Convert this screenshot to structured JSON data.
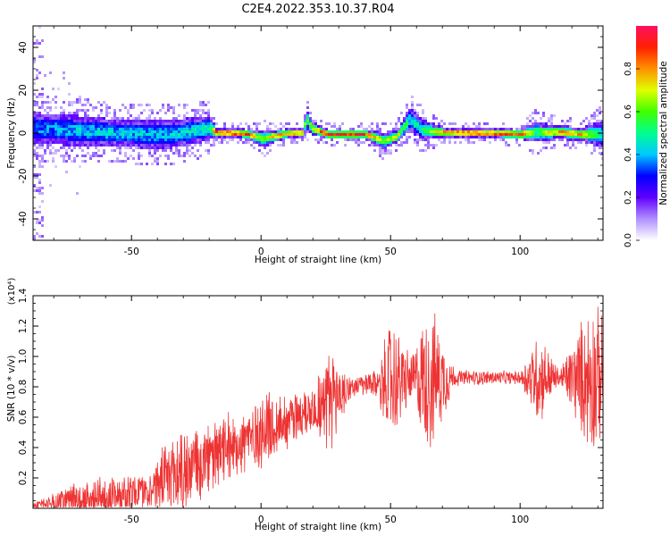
{
  "figure": {
    "title": "C2E4.2022.353.10.37.R04"
  },
  "chart_data": [
    {
      "type": "heatmap",
      "xlabel": "Height of straight line (km)",
      "ylabel": "Frequency (Hz)",
      "xlim": [
        -88,
        132
      ],
      "ylim": [
        -50,
        50
      ],
      "xticks": [
        -50,
        0,
        50,
        100
      ],
      "yticks": [
        -40,
        -20,
        0,
        20,
        40
      ],
      "colorbar": {
        "label": "Normalized spectral amplitude",
        "range": [
          0,
          1
        ],
        "ticks": [
          "0.0",
          "0.2",
          "0.4",
          "0.6",
          "0.8"
        ],
        "tick_values": [
          0.0,
          0.2,
          0.4,
          0.6,
          0.8
        ],
        "colormap": [
          "#ffffff",
          "#b090ff",
          "#6000ff",
          "#0000ff",
          "#00c8ff",
          "#00ff90",
          "#40ff00",
          "#e0ff00",
          "#ff9000",
          "#ff2000",
          "#ff1060"
        ]
      },
      "ridge": [
        {
          "x": -88,
          "freq": 3,
          "band": 4.5,
          "peak": 0.35
        },
        {
          "x": -75,
          "freq": 2,
          "band": 4.5,
          "peak": 0.4
        },
        {
          "x": -60,
          "freq": 1,
          "band": 4,
          "peak": 0.42
        },
        {
          "x": -45,
          "freq": 0,
          "band": 4,
          "peak": 0.4
        },
        {
          "x": -35,
          "freq": 0,
          "band": 4,
          "peak": 0.42
        },
        {
          "x": -25,
          "freq": 2,
          "band": 4,
          "peak": 0.45
        },
        {
          "x": -20,
          "freq": 3,
          "band": 3.5,
          "peak": 0.5
        },
        {
          "x": -18,
          "freq": 1,
          "band": 1.5,
          "peak": 0.9
        },
        {
          "x": -5,
          "freq": 0,
          "band": 1.5,
          "peak": 0.85
        },
        {
          "x": 0,
          "freq": -2,
          "band": 2.5,
          "peak": 0.6
        },
        {
          "x": 8,
          "freq": 0,
          "band": 1.5,
          "peak": 0.85
        },
        {
          "x": 16,
          "freq": 1,
          "band": 1.5,
          "peak": 0.8
        },
        {
          "x": 17,
          "freq": 8,
          "band": 3,
          "peak": 0.5
        },
        {
          "x": 19,
          "freq": 3,
          "band": 2,
          "peak": 0.7
        },
        {
          "x": 25,
          "freq": 0,
          "band": 1.5,
          "peak": 0.9
        },
        {
          "x": 40,
          "freq": 0,
          "band": 1.5,
          "peak": 0.88
        },
        {
          "x": 47,
          "freq": -3,
          "band": 2.5,
          "peak": 0.6
        },
        {
          "x": 52,
          "freq": -1,
          "band": 2,
          "peak": 0.7
        },
        {
          "x": 57,
          "freq": 7,
          "band": 3.5,
          "peak": 0.45
        },
        {
          "x": 62,
          "freq": 2,
          "band": 3,
          "peak": 0.5
        },
        {
          "x": 70,
          "freq": 1,
          "band": 1.5,
          "peak": 0.85
        },
        {
          "x": 100,
          "freq": 0,
          "band": 1.5,
          "peak": 0.88
        },
        {
          "x": 105,
          "freq": 1,
          "band": 3,
          "peak": 0.55
        },
        {
          "x": 115,
          "freq": 1,
          "band": 2,
          "peak": 0.8
        },
        {
          "x": 123,
          "freq": 0,
          "band": 2,
          "peak": 0.75
        },
        {
          "x": 132,
          "freq": 0,
          "band": 4,
          "peak": 0.45
        }
      ]
    },
    {
      "type": "line",
      "xlabel": "Height of straight line (km)",
      "ylabel": "SNR (10 * v/v)",
      "yunit": "(x10⁴)",
      "xlim": [
        -88,
        132
      ],
      "ylim": [
        0,
        1.4
      ],
      "xticks": [
        -50,
        0,
        50,
        100
      ],
      "yticks": [
        0.2,
        0.4,
        0.6,
        0.8,
        1.0,
        1.2,
        1.4
      ],
      "ytick_labels": [
        "0.2",
        "0.4",
        "0.6",
        "0.8",
        "1.0",
        "1.2",
        "1.4"
      ],
      "color": "#ee3333",
      "envelope": [
        {
          "x": -88,
          "base": 0.02,
          "amp": 0.02
        },
        {
          "x": -70,
          "base": 0.05,
          "amp": 0.12
        },
        {
          "x": -55,
          "base": 0.1,
          "amp": 0.14
        },
        {
          "x": -45,
          "base": 0.12,
          "amp": 0.12
        },
        {
          "x": -30,
          "base": 0.25,
          "amp": 0.3
        },
        {
          "x": -20,
          "base": 0.32,
          "amp": 0.22
        },
        {
          "x": -10,
          "base": 0.42,
          "amp": 0.2
        },
        {
          "x": 0,
          "base": 0.5,
          "amp": 0.25
        },
        {
          "x": 10,
          "base": 0.58,
          "amp": 0.18
        },
        {
          "x": 20,
          "base": 0.66,
          "amp": 0.15
        },
        {
          "x": 27,
          "base": 0.72,
          "amp": 0.35
        },
        {
          "x": 35,
          "base": 0.8,
          "amp": 0.05
        },
        {
          "x": 45,
          "base": 0.82,
          "amp": 0.1
        },
        {
          "x": 50,
          "base": 0.84,
          "amp": 0.4
        },
        {
          "x": 58,
          "base": 0.85,
          "amp": 0.15
        },
        {
          "x": 65,
          "base": 0.85,
          "amp": 0.48
        },
        {
          "x": 75,
          "base": 0.86,
          "amp": 0.05
        },
        {
          "x": 100,
          "base": 0.86,
          "amp": 0.04
        },
        {
          "x": 107,
          "base": 0.86,
          "amp": 0.3
        },
        {
          "x": 115,
          "base": 0.86,
          "amp": 0.05
        },
        {
          "x": 128,
          "base": 0.86,
          "amp": 0.5
        },
        {
          "x": 132,
          "base": 0.86,
          "amp": 0.35
        }
      ]
    }
  ]
}
